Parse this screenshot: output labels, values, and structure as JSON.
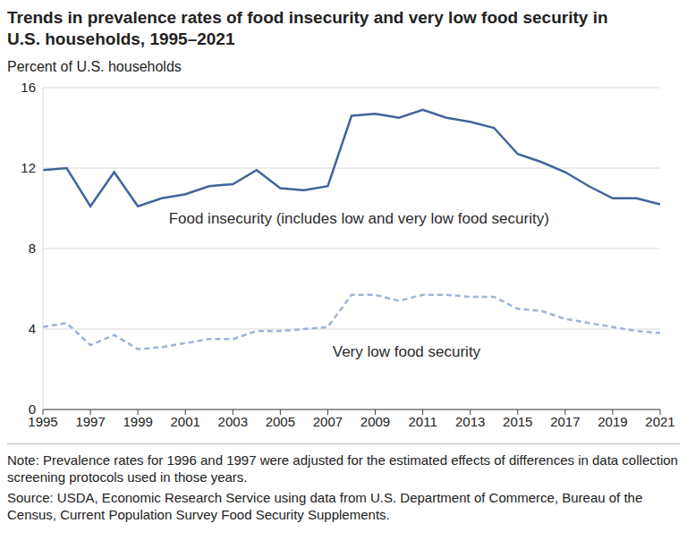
{
  "chart_data": {
    "type": "line",
    "title": "Trends in prevalence rates of food insecurity and very low food security in U.S. households, 1995–2021",
    "y_label": "Percent of U.S. households",
    "x": [
      1995,
      1996,
      1997,
      1998,
      1999,
      2000,
      2001,
      2002,
      2003,
      2004,
      2005,
      2006,
      2007,
      2008,
      2009,
      2010,
      2011,
      2012,
      2013,
      2014,
      2015,
      2016,
      2017,
      2018,
      2019,
      2020,
      2021
    ],
    "series": [
      {
        "name": "Food insecurity (includes low and very low food security)",
        "color": "#41649b",
        "line_style": "solid",
        "values": [
          11.9,
          12.0,
          10.1,
          11.8,
          10.1,
          10.5,
          10.7,
          11.1,
          11.2,
          11.9,
          11.0,
          10.9,
          11.1,
          14.6,
          14.7,
          14.5,
          14.9,
          14.5,
          14.3,
          14.0,
          12.7,
          12.3,
          11.8,
          11.1,
          10.5,
          10.5,
          10.2
        ]
      },
      {
        "name": "Very low food security",
        "color": "#9bb3dc",
        "line_style": "dashed",
        "values": [
          4.1,
          4.3,
          3.2,
          3.7,
          3.0,
          3.1,
          3.3,
          3.5,
          3.5,
          3.9,
          3.9,
          4.0,
          4.1,
          5.7,
          5.7,
          5.4,
          5.7,
          5.7,
          5.6,
          5.6,
          5.0,
          4.9,
          4.5,
          4.3,
          4.1,
          3.9,
          3.8
        ]
      }
    ],
    "xlim": [
      1995,
      2021
    ],
    "xticks": [
      1995,
      1997,
      1999,
      2001,
      2003,
      2005,
      2007,
      2009,
      2011,
      2013,
      2015,
      2017,
      2019,
      2021
    ],
    "ylim": [
      0,
      16
    ],
    "yticks": [
      0,
      4,
      8,
      12,
      16
    ],
    "grid": true,
    "note": "Note: Prevalence rates for 1996 and 1997 were adjusted for the estimated effects of differences in data collection screening protocols used in those years.",
    "source": "Source: USDA, Economic Research Service using data from U.S. Department of Commerce, Bureau of the Census, Current Population Survey Food Security Supplements."
  }
}
